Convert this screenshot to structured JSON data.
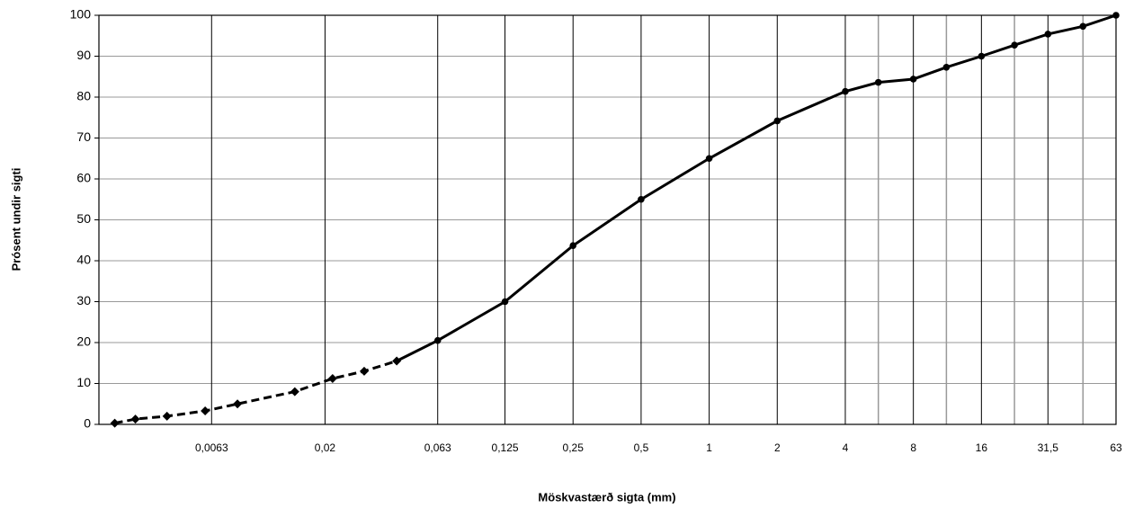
{
  "chart_data": {
    "type": "line",
    "xlabel": "Möskvastærð sigta (mm)",
    "ylabel": "Prósent undir sigti",
    "xscale": "log",
    "xlim": [
      0.002,
      63
    ],
    "ylim": [
      0,
      100
    ],
    "xticks": [
      {
        "value": 0.0063,
        "label": "0,0063"
      },
      {
        "value": 0.02,
        "label": "0,02"
      },
      {
        "value": 0.063,
        "label": "0,063"
      },
      {
        "value": 0.125,
        "label": "0,125"
      },
      {
        "value": 0.25,
        "label": "0,25"
      },
      {
        "value": 0.5,
        "label": "0,5"
      },
      1,
      2,
      4,
      8,
      16,
      {
        "value": 31.5,
        "label": "31,5"
      },
      63
    ],
    "xminorticks": [
      5.6,
      11.2,
      22.4,
      45
    ],
    "yticks": [
      0,
      10,
      20,
      30,
      40,
      50,
      60,
      70,
      80,
      90,
      100
    ],
    "grid": true,
    "series": [
      {
        "color": "#000000",
        "linestyle": "dashed",
        "marker": "diamond",
        "x": [
          0.00235,
          0.0029,
          0.004,
          0.0059,
          0.0082,
          0.0147,
          0.0216,
          0.0298,
          0.0415
        ],
        "values": [
          0.3,
          1.3,
          2.0,
          3.3,
          5.0,
          8.0,
          11.2,
          13.0,
          15.5
        ]
      },
      {
        "color": "#000000",
        "linestyle": "solid",
        "marker": "circle",
        "x": [
          0.063,
          0.125,
          0.25,
          0.5,
          1,
          2,
          4,
          5.6,
          8,
          11.2,
          16,
          22.4,
          31.5,
          45,
          63
        ],
        "values": [
          20.5,
          30,
          43.7,
          55,
          65,
          74.2,
          81.4,
          83.6,
          84.4,
          87.3,
          90,
          92.7,
          95.4,
          97.3,
          100
        ]
      }
    ]
  }
}
